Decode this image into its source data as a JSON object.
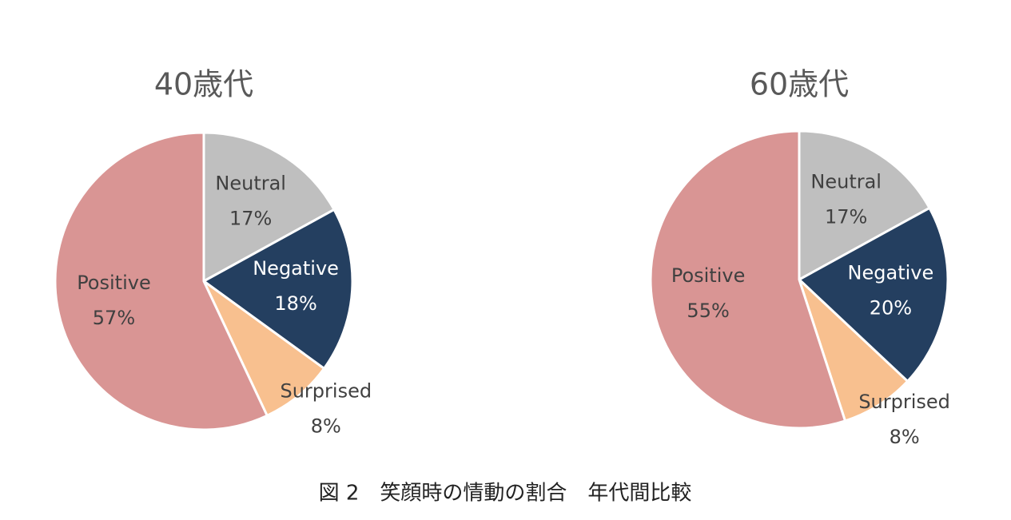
{
  "chart_data": [
    {
      "type": "pie",
      "title": "40歳代",
      "categories": [
        "Neutral",
        "Negative",
        "Surprised",
        "Positive"
      ],
      "values": [
        17,
        18,
        8,
        57
      ],
      "value_labels": [
        "17%",
        "18%",
        "8%",
        "57%"
      ],
      "colors": [
        "#bfbfbf",
        "#243f60",
        "#f8c08f",
        "#d99594"
      ]
    },
    {
      "type": "pie",
      "title": "60歳代",
      "categories": [
        "Neutral",
        "Negative",
        "Surprised",
        "Positive"
      ],
      "values": [
        17,
        20,
        8,
        55
      ],
      "value_labels": [
        "17%",
        "20%",
        "8%",
        "55%"
      ],
      "colors": [
        "#bfbfbf",
        "#243f60",
        "#f8c08f",
        "#d99594"
      ]
    }
  ],
  "caption": "図 2　笑顔時の情動の割合　年代間比較"
}
